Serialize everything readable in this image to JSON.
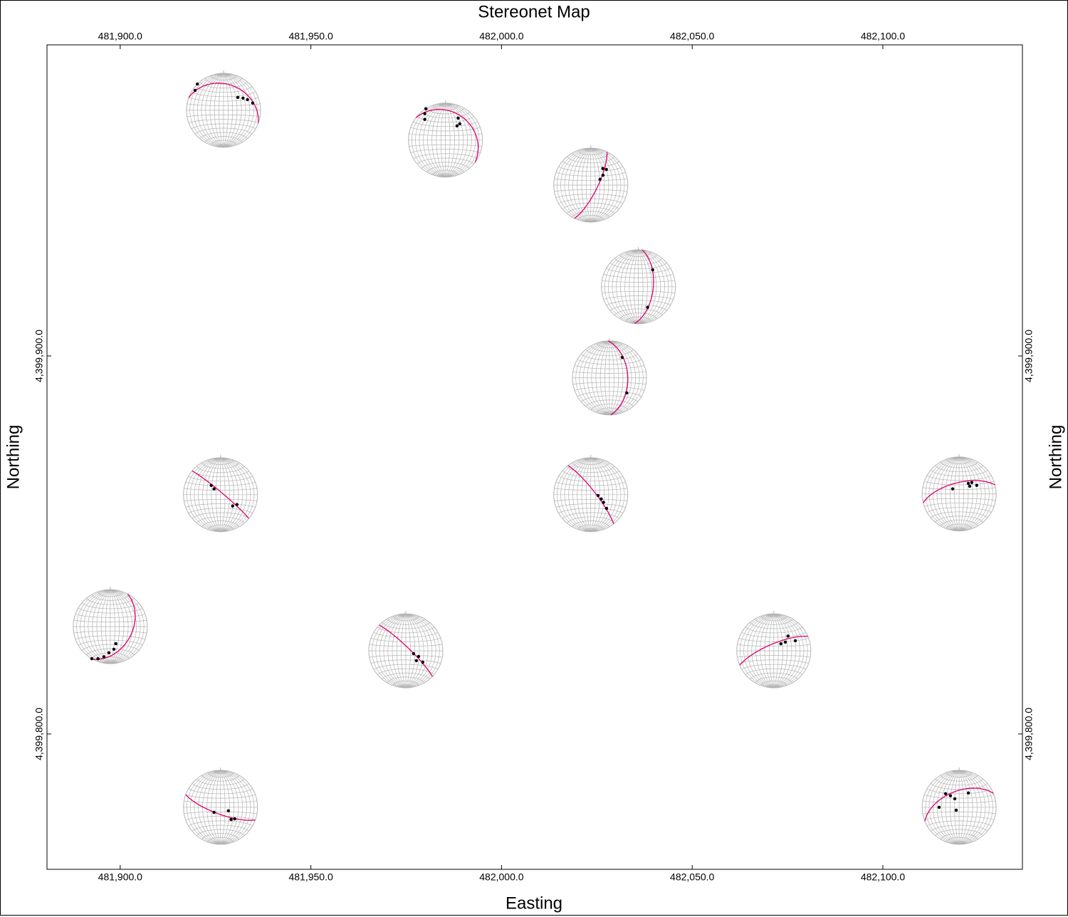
{
  "chart_data": {
    "type": "stereonet-map",
    "title": "Stereonet Map",
    "xlabel": "Easting",
    "ylabel": "Northing",
    "xlim": [
      481880.8,
      482136.6
    ],
    "ylim": [
      4399764.2,
      4399982.3
    ],
    "xticks": [
      {
        "value": 481900,
        "label": "481,900.0"
      },
      {
        "value": 481950,
        "label": "481,950.0"
      },
      {
        "value": 482000,
        "label": "482,000.0"
      },
      {
        "value": 482050,
        "label": "482,050.0"
      },
      {
        "value": 482100,
        "label": "482,100.0"
      }
    ],
    "yticks": [
      {
        "value": 4399800,
        "label": "4,399,800.0"
      },
      {
        "value": 4399900,
        "label": "4,399,900.0"
      }
    ],
    "net_color": "#b4b4b4",
    "plane_color": "#e0006e",
    "point_color": "#000000",
    "x": [
      481927.1,
      481985.3,
      482023.4,
      482035.9,
      482028.3,
      481926.3,
      482023.4,
      482120.0,
      481897.4,
      481974.9,
      482071.4,
      481926.3,
      482120.0
    ],
    "y": [
      4399965.0,
      4399957.1,
      4399945.2,
      4399918.3,
      4399894.2,
      4399863.3,
      4399863.3,
      4399863.5,
      4399828.4,
      4399822.0,
      4399822.0,
      4399780.6,
      4399780.6
    ],
    "nets": [
      {
        "strike": 290,
        "dip": 30,
        "trends": [
          315,
          305,
          48,
          58,
          66,
          76
        ],
        "plunges": [
          0,
          7,
          47,
          38,
          30,
          20
        ]
      },
      {
        "strike": 307,
        "dip": 24,
        "trends": [
          328,
          322,
          315,
          30,
          39,
          41
        ],
        "plunges": [
          0,
          10,
          22,
          32,
          49,
          41
        ]
      },
      {
        "strike": 26,
        "dip": 75,
        "trends": [
          36,
          45,
          51,
          58
        ],
        "plunges": [
          44,
          40,
          55,
          66
        ]
      },
      {
        "strike": 6,
        "dip": 57,
        "trends": [
          40,
          156
        ],
        "plunges": [
          40,
          39
        ]
      },
      {
        "strike": 358,
        "dip": 49,
        "trends": [
          32,
          131
        ],
        "plunges": [
          35,
          38
        ]
      },
      {
        "strike": 310,
        "dip": 85,
        "trends": [
          315,
          312,
          133,
          121
        ],
        "plunges": [
          61,
          71,
          53,
          47
        ]
      },
      {
        "strike": 322,
        "dip": 80,
        "trends": [
          96,
          112,
          121,
          131
        ],
        "plunges": [
          74,
          65,
          57,
          43
        ]
      },
      {
        "strike": 256,
        "dip": 65,
        "trends": [
          308,
          41,
          48,
          54,
          64
        ],
        "plunges": [
          72,
          59,
          52,
          61,
          46
        ]
      },
      {
        "strike": 28,
        "dip": 40,
        "trends": [
          210,
          201,
          192,
          183,
          171,
          162
        ],
        "plunges": [
          0,
          8,
          18,
          30,
          38,
          50
        ]
      },
      {
        "strike": 314,
        "dip": 82,
        "trends": [
          110,
          114,
          133,
          124
        ],
        "plunges": [
          72,
          59,
          58,
          44
        ]
      },
      {
        "strike": 247,
        "dip": 75,
        "trends": [
          45,
          53,
          44,
          65
        ],
        "plunges": [
          68,
          58,
          44,
          36
        ]
      },
      {
        "strike": 110,
        "dip": 75,
        "trends": [
          232,
          114,
          139,
          129
        ],
        "plunges": [
          72,
          71,
          54,
          49
        ]
      },
      {
        "strike": 248,
        "dip": 54,
        "trends": [
          270,
          315,
          323,
          333,
          225,
          33
        ],
        "plunges": [
          45,
          47,
          58,
          69,
          81,
          52
        ]
      }
    ]
  }
}
